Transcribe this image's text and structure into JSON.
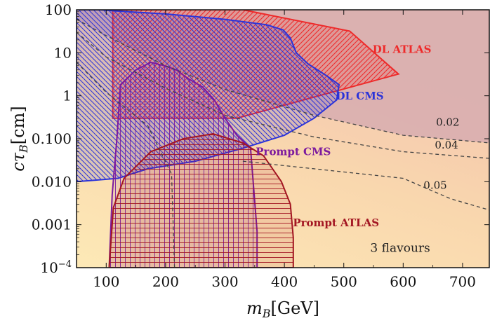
{
  "colors": {
    "bg_light": "#fde5b0",
    "bg_mid": "#f7cfb0",
    "bg_dark": "#d8aeb0",
    "dl_atlas": "#ee2a2a",
    "dl_cms": "#2b33d9",
    "prompt_cms": "#7c1a9e",
    "prompt_atlas": "#a31622",
    "contour": "#444444"
  },
  "chart_data": {
    "type": "area",
    "xlabel_main": "m",
    "xlabel_sub": "B",
    "xlabel_unit": "[GeV]",
    "ylabel_main": "cτ",
    "ylabel_sub": "B",
    "ylabel_unit": "[cm]",
    "xlim": [
      50,
      745
    ],
    "ylim": [
      0.0001,
      100
    ],
    "yscale": "log",
    "xticks": [
      {
        "value": 100,
        "label": "100"
      },
      {
        "value": 200,
        "label": "200"
      },
      {
        "value": 300,
        "label": "300"
      },
      {
        "value": 400,
        "label": "400"
      },
      {
        "value": 500,
        "label": "500"
      },
      {
        "value": 600,
        "label": "600"
      },
      {
        "value": 700,
        "label": "700"
      }
    ],
    "yticks": [
      {
        "value": 100,
        "label": "100"
      },
      {
        "value": 10,
        "label": "10"
      },
      {
        "value": 1,
        "label": "1"
      },
      {
        "value": 0.1,
        "label": "0.100"
      },
      {
        "value": 0.01,
        "label": "0.010"
      },
      {
        "value": 0.001,
        "label": "0.001"
      },
      {
        "value": 0.0001,
        "label_base": "10",
        "label_exp": "−4"
      }
    ],
    "regions": [
      {
        "name": "DL ATLAS",
        "polygon": [
          [
            111,
            0.3
          ],
          [
            320,
            0.3
          ],
          [
            592,
            3.2
          ],
          [
            510,
            32
          ],
          [
            330,
            100
          ],
          [
            111,
            100
          ]
        ]
      },
      {
        "name": "DL CMS",
        "polygon": [
          [
            50,
            0.01
          ],
          [
            120,
            0.012
          ],
          [
            170,
            0.02
          ],
          [
            250,
            0.03
          ],
          [
            330,
            0.06
          ],
          [
            400,
            0.12
          ],
          [
            450,
            0.3
          ],
          [
            488,
            0.8
          ],
          [
            492,
            1.8
          ],
          [
            470,
            3
          ],
          [
            440,
            5.5
          ],
          [
            420,
            10
          ],
          [
            410,
            22
          ],
          [
            398,
            34
          ],
          [
            370,
            45
          ],
          [
            300,
            60
          ],
          [
            200,
            80
          ],
          [
            110,
            95
          ],
          [
            90,
            100
          ],
          [
            50,
            100
          ]
        ]
      },
      {
        "name": "Prompt CMS",
        "polygon": [
          [
            105,
            0.0001
          ],
          [
            110,
            0.005
          ],
          [
            118,
            0.1
          ],
          [
            124,
            1.8
          ],
          [
            150,
            4
          ],
          [
            175,
            6
          ],
          [
            198,
            5
          ],
          [
            218,
            4
          ],
          [
            238,
            2.5
          ],
          [
            262,
            1.6
          ],
          [
            282,
            0.8
          ],
          [
            300,
            0.3
          ],
          [
            320,
            0.12
          ],
          [
            343,
            0.06
          ],
          [
            354,
            0.0007
          ],
          [
            354,
            0.0001
          ]
        ]
      },
      {
        "name": "Prompt ATLAS",
        "polygon": [
          [
            105,
            0.0001
          ],
          [
            112,
            0.0025
          ],
          [
            130,
            0.012
          ],
          [
            175,
            0.05
          ],
          [
            230,
            0.1
          ],
          [
            280,
            0.13
          ],
          [
            330,
            0.08
          ],
          [
            365,
            0.04
          ],
          [
            395,
            0.01
          ],
          [
            410,
            0.003
          ],
          [
            415,
            0.0005
          ],
          [
            415,
            0.0001
          ]
        ]
      }
    ],
    "contours": [
      {
        "label": "0.02",
        "points": [
          [
            50,
            60
          ],
          [
            100,
            25
          ],
          [
            200,
            5
          ],
          [
            300,
            1.4
          ],
          [
            450,
            0.35
          ],
          [
            600,
            0.12
          ],
          [
            745,
            0.08
          ]
        ]
      },
      {
        "label": "0.04",
        "points": [
          [
            50,
            30
          ],
          [
            100,
            8
          ],
          [
            200,
            1.5
          ],
          [
            300,
            0.35
          ],
          [
            450,
            0.11
          ],
          [
            600,
            0.05
          ],
          [
            745,
            0.035
          ]
        ]
      },
      {
        "label": "0.05",
        "points": [
          [
            50,
            6
          ],
          [
            100,
            1.2
          ],
          [
            170,
            0.2
          ],
          [
            210,
            0.015
          ],
          [
            215,
            0.0001
          ]
        ]
      },
      {
        "label": "",
        "points": [
          [
            330,
            0.03
          ],
          [
            450,
            0.02
          ],
          [
            600,
            0.012
          ],
          [
            680,
            0.004
          ],
          [
            745,
            0.0022
          ]
        ]
      }
    ],
    "annotations": [
      {
        "text": "DL ATLAS",
        "x": 598,
        "y": 12,
        "color": "dl_atlas",
        "style": "bold"
      },
      {
        "text": "DL CMS",
        "x": 527,
        "y": 0.98,
        "color": "dl_cms",
        "style": "bold"
      },
      {
        "text": "Prompt CMS",
        "x": 415,
        "y": 0.05,
        "color": "prompt_cms",
        "style": "bold"
      },
      {
        "text": "Prompt ATLAS",
        "x": 487,
        "y": 0.0011,
        "color": "prompt_atlas",
        "style": "bold"
      },
      {
        "text": "0.02",
        "x": 675,
        "y": 0.24,
        "color": "contour",
        "style": "plain"
      },
      {
        "text": "0.04",
        "x": 673,
        "y": 0.072,
        "color": "contour",
        "style": "plain"
      },
      {
        "text": "0.05",
        "x": 654,
        "y": 0.0083,
        "color": "contour",
        "style": "plain"
      },
      {
        "text": "3 flavours",
        "x": 595,
        "y": 0.00028,
        "color": "contour",
        "style": "big"
      }
    ]
  }
}
